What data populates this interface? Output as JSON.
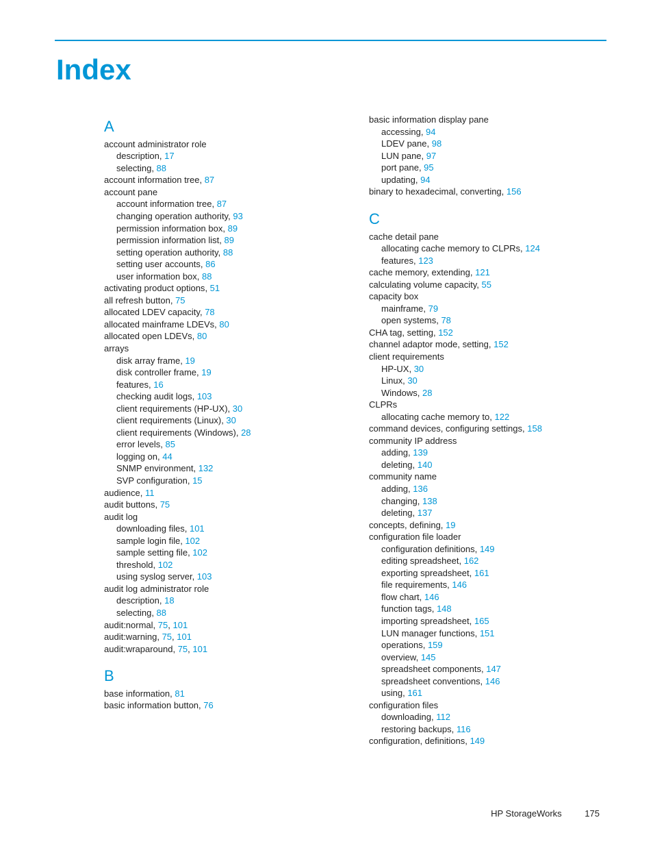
{
  "colors": {
    "accent": "#0096d6",
    "text": "#222222",
    "background": "#ffffff"
  },
  "typography": {
    "title_size_pt": 32,
    "letter_size_pt": 17,
    "body_size_pt": 10,
    "line_height": 1.35
  },
  "title": "Index",
  "footer": {
    "label": "HP StorageWorks",
    "page": "175"
  },
  "left": {
    "A": {
      "letter": "A",
      "entries": [
        {
          "lvl": 0,
          "text": "account administrator role"
        },
        {
          "lvl": 1,
          "text": "description",
          "pg": "17"
        },
        {
          "lvl": 1,
          "text": "selecting",
          "pg": "88"
        },
        {
          "lvl": 0,
          "text": "account information tree",
          "pg": "87"
        },
        {
          "lvl": 0,
          "text": "account pane"
        },
        {
          "lvl": 1,
          "text": "account information tree",
          "pg": "87"
        },
        {
          "lvl": 1,
          "text": "changing operation authority",
          "pg": "93"
        },
        {
          "lvl": 1,
          "text": "permission information box",
          "pg": "89"
        },
        {
          "lvl": 1,
          "text": "permission information list",
          "pg": "89"
        },
        {
          "lvl": 1,
          "text": "setting operation authority",
          "pg": "88"
        },
        {
          "lvl": 1,
          "text": "setting user accounts",
          "pg": "86"
        },
        {
          "lvl": 1,
          "text": "user information box",
          "pg": "88"
        },
        {
          "lvl": 0,
          "text": "activating product options",
          "pg": "51"
        },
        {
          "lvl": 0,
          "text": "all refresh button",
          "pg": "75"
        },
        {
          "lvl": 0,
          "text": "allocated LDEV capacity",
          "pg": "78"
        },
        {
          "lvl": 0,
          "text": "allocated mainframe LDEVs",
          "pg": "80"
        },
        {
          "lvl": 0,
          "text": "allocated open LDEVs",
          "pg": "80"
        },
        {
          "lvl": 0,
          "text": "arrays"
        },
        {
          "lvl": 1,
          "text": "disk array frame",
          "pg": "19"
        },
        {
          "lvl": 1,
          "text": "disk controller frame",
          "pg": "19"
        },
        {
          "lvl": 1,
          "text": "features",
          "pg": "16"
        },
        {
          "lvl": 1,
          "text": "checking audit logs",
          "pg": "103"
        },
        {
          "lvl": 1,
          "text": "client requirements (HP-UX)",
          "pg": "30"
        },
        {
          "lvl": 1,
          "text": "client requirements (Linux)",
          "pg": "30"
        },
        {
          "lvl": 1,
          "text": "client requirements (Windows)",
          "pg": "28"
        },
        {
          "lvl": 1,
          "text": "error levels",
          "pg": "85"
        },
        {
          "lvl": 1,
          "text": "logging on",
          "pg": "44"
        },
        {
          "lvl": 1,
          "text": "SNMP environment",
          "pg": "132"
        },
        {
          "lvl": 1,
          "text": "SVP configuration",
          "pg": "15"
        },
        {
          "lvl": 0,
          "text": "audience",
          "pg": "11"
        },
        {
          "lvl": 0,
          "text": "audit buttons",
          "pg": "75"
        },
        {
          "lvl": 0,
          "text": "audit log"
        },
        {
          "lvl": 1,
          "text": "downloading files",
          "pg": "101"
        },
        {
          "lvl": 1,
          "text": "sample login file",
          "pg": "102"
        },
        {
          "lvl": 1,
          "text": "sample setting file",
          "pg": "102"
        },
        {
          "lvl": 1,
          "text": "threshold",
          "pg": "102"
        },
        {
          "lvl": 1,
          "text": "using syslog server",
          "pg": "103"
        },
        {
          "lvl": 0,
          "text": "audit log administrator role"
        },
        {
          "lvl": 1,
          "text": "description",
          "pg": "18"
        },
        {
          "lvl": 1,
          "text": "selecting",
          "pg": "88"
        },
        {
          "lvl": 0,
          "text": "audit:normal",
          "pg": "75, 101"
        },
        {
          "lvl": 0,
          "text": "audit:warning",
          "pg": "75, 101"
        },
        {
          "lvl": 0,
          "text": "audit:wraparound",
          "pg": "75, 101"
        }
      ]
    },
    "B": {
      "letter": "B",
      "entries": [
        {
          "lvl": 0,
          "text": "base information",
          "pg": "81"
        },
        {
          "lvl": 0,
          "text": "basic information button",
          "pg": "76"
        }
      ]
    }
  },
  "right": {
    "Btop": {
      "entries": [
        {
          "lvl": 0,
          "text": "basic information display pane"
        },
        {
          "lvl": 1,
          "text": "accessing",
          "pg": "94"
        },
        {
          "lvl": 1,
          "text": "LDEV pane",
          "pg": "98"
        },
        {
          "lvl": 1,
          "text": "LUN pane",
          "pg": "97"
        },
        {
          "lvl": 1,
          "text": "port pane",
          "pg": "95"
        },
        {
          "lvl": 1,
          "text": "updating",
          "pg": "94"
        },
        {
          "lvl": 0,
          "text": "binary to hexadecimal, converting",
          "pg": "156"
        }
      ]
    },
    "C": {
      "letter": "C",
      "entries": [
        {
          "lvl": 0,
          "text": "cache detail pane"
        },
        {
          "lvl": 1,
          "text": "allocating cache memory to CLPRs",
          "pg": "124"
        },
        {
          "lvl": 1,
          "text": "features",
          "pg": "123"
        },
        {
          "lvl": 0,
          "text": "cache memory, extending",
          "pg": "121"
        },
        {
          "lvl": 0,
          "text": "calculating volume capacity",
          "pg": "55"
        },
        {
          "lvl": 0,
          "text": "capacity box"
        },
        {
          "lvl": 1,
          "text": "mainframe",
          "pg": "79"
        },
        {
          "lvl": 1,
          "text": "open systems",
          "pg": "78"
        },
        {
          "lvl": 0,
          "text": "CHA tag, setting",
          "pg": "152"
        },
        {
          "lvl": 0,
          "text": "channel adaptor mode, setting",
          "pg": "152"
        },
        {
          "lvl": 0,
          "text": "client requirements"
        },
        {
          "lvl": 1,
          "text": "HP-UX",
          "pg": "30"
        },
        {
          "lvl": 1,
          "text": "Linux",
          "pg": "30"
        },
        {
          "lvl": 1,
          "text": "Windows",
          "pg": "28"
        },
        {
          "lvl": 0,
          "text": "CLPRs"
        },
        {
          "lvl": 1,
          "text": "allocating cache memory to",
          "pg": "122"
        },
        {
          "lvl": 0,
          "text": "command devices, configuring settings",
          "pg": "158"
        },
        {
          "lvl": 0,
          "text": "community IP address"
        },
        {
          "lvl": 1,
          "text": "adding",
          "pg": "139"
        },
        {
          "lvl": 1,
          "text": "deleting",
          "pg": "140"
        },
        {
          "lvl": 0,
          "text": "community name"
        },
        {
          "lvl": 1,
          "text": "adding",
          "pg": "136"
        },
        {
          "lvl": 1,
          "text": "changing",
          "pg": "138"
        },
        {
          "lvl": 1,
          "text": "deleting",
          "pg": "137"
        },
        {
          "lvl": 0,
          "text": "concepts, defining",
          "pg": "19"
        },
        {
          "lvl": 0,
          "text": "configuration file loader"
        },
        {
          "lvl": 1,
          "text": "configuration definitions",
          "pg": "149"
        },
        {
          "lvl": 1,
          "text": "editing spreadsheet",
          "pg": "162"
        },
        {
          "lvl": 1,
          "text": "exporting spreadsheet",
          "pg": "161"
        },
        {
          "lvl": 1,
          "text": "file requirements",
          "pg": "146"
        },
        {
          "lvl": 1,
          "text": "flow chart",
          "pg": "146"
        },
        {
          "lvl": 1,
          "text": "function tags",
          "pg": "148"
        },
        {
          "lvl": 1,
          "text": "importing spreadsheet",
          "pg": "165"
        },
        {
          "lvl": 1,
          "text": "LUN manager functions",
          "pg": "151"
        },
        {
          "lvl": 1,
          "text": "operations",
          "pg": "159"
        },
        {
          "lvl": 1,
          "text": "overview",
          "pg": "145"
        },
        {
          "lvl": 1,
          "text": "spreadsheet components",
          "pg": "147"
        },
        {
          "lvl": 1,
          "text": "spreadsheet conventions",
          "pg": "146"
        },
        {
          "lvl": 1,
          "text": "using",
          "pg": "161"
        },
        {
          "lvl": 0,
          "text": "configuration files"
        },
        {
          "lvl": 1,
          "text": "downloading",
          "pg": "112"
        },
        {
          "lvl": 1,
          "text": "restoring backups",
          "pg": "116"
        },
        {
          "lvl": 0,
          "text": "configuration, definitions",
          "pg": "149"
        }
      ]
    }
  }
}
